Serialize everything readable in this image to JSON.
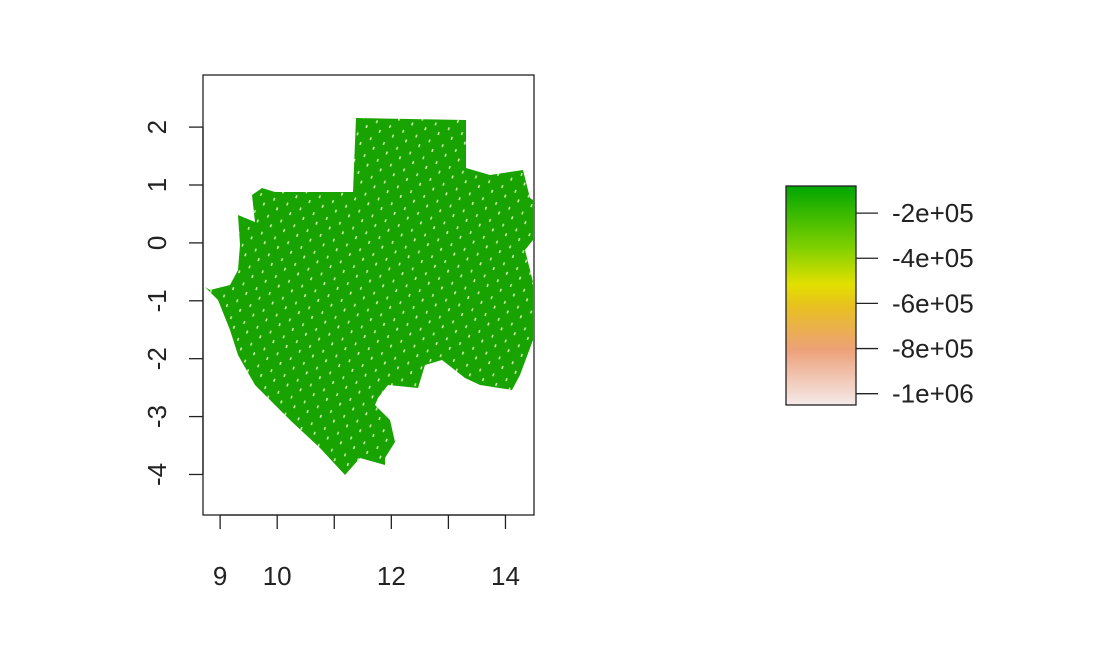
{
  "map": {
    "type": "raster-map",
    "region": "Gabon",
    "fill_color": "#19a300",
    "x_axis": {
      "range": [
        8.7,
        14.5
      ],
      "ticks": [
        9,
        10,
        11,
        12,
        13,
        14
      ],
      "tick_labels": [
        "9",
        "10",
        "12",
        "14"
      ],
      "labeled_ticks": [
        9,
        10,
        12,
        14
      ]
    },
    "y_axis": {
      "range": [
        -4.7,
        2.9
      ],
      "ticks": [
        2,
        1,
        0,
        -1,
        -2,
        -3,
        -4
      ],
      "tick_labels": [
        "2",
        "1",
        "0",
        "-1",
        "-2",
        "-3",
        "-4"
      ]
    }
  },
  "legend": {
    "type": "color-bar",
    "range": [
      -1050000,
      -80000
    ],
    "colors": [
      "#f5eaea",
      "#eda17a",
      "#e8c020",
      "#e2e000",
      "#7fd000",
      "#00a600"
    ],
    "ticks": [
      -200000,
      -400000,
      -600000,
      -800000,
      -1000000
    ],
    "tick_labels": [
      "-2e+05",
      "-4e+05",
      "-6e+05",
      "-8e+05",
      "-1e+06"
    ]
  }
}
